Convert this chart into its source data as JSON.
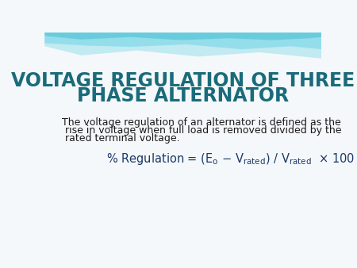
{
  "title_line1": "VOLTAGE REGULATION OF THREE",
  "title_line2": "PHASE ALTERNATOR",
  "title_color": "#1a6b7a",
  "title_fontsize": 17,
  "body_line1": "The voltage regulation of an alternator is defined as the",
  "body_line2": " rise in voltage when full load is removed divided by the",
  "body_line3": " rated terminal voltage.",
  "body_color": "#1a1a1a",
  "body_fontsize": 9.0,
  "formula_color": "#1a3a6b",
  "formula_fontsize": 10.5,
  "bg_color": "#f5f8fa",
  "wave_color1": "#b8e8f0",
  "wave_color2": "#7dd6e8",
  "wave_color3": "#40bcd0",
  "fig_width": 4.5,
  "fig_height": 3.38,
  "dpi": 100
}
